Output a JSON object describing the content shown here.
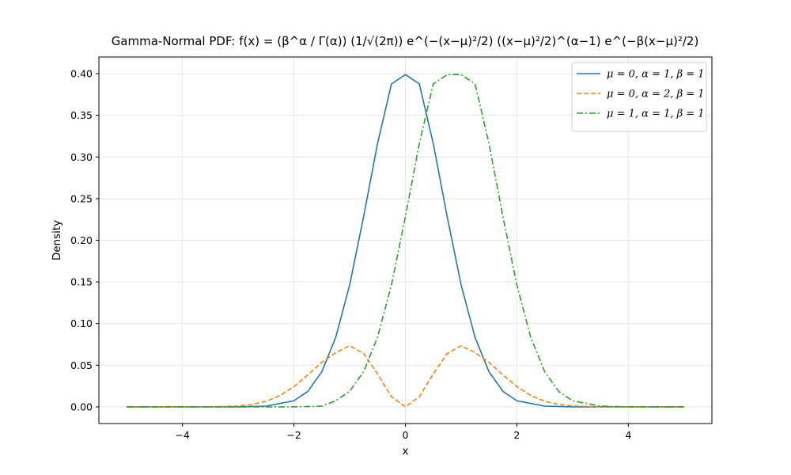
{
  "chart_data": {
    "type": "line",
    "title": "Gamma-Normal PDF: f(x) = (β^α / Γ(α)) (1/√(2π)) e^(−(x−μ)²/2) ((x−μ)²/2)^(α−1) e^(−β(x−μ)²/2)",
    "xlabel": "x",
    "ylabel": "Density",
    "xlim": [
      -5.5,
      5.5
    ],
    "ylim": [
      -0.02,
      0.42
    ],
    "xticks": [
      -4,
      -2,
      0,
      2,
      4
    ],
    "xtick_labels": [
      "−4",
      "−2",
      "0",
      "2",
      "4"
    ],
    "yticks": [
      0.0,
      0.05,
      0.1,
      0.15,
      0.2,
      0.25,
      0.3,
      0.35,
      0.4
    ],
    "ytick_labels": [
      "0.00",
      "0.05",
      "0.10",
      "0.15",
      "0.20",
      "0.25",
      "0.30",
      "0.35",
      "0.40"
    ],
    "grid": true,
    "legend_position": "top-right",
    "series": [
      {
        "name": "μ = 0, α = 1, β = 1",
        "color": "#1f77b4",
        "style": "solid",
        "x": [
          -5.0,
          -4.5,
          -4.0,
          -3.5,
          -3.0,
          -2.5,
          -2.0,
          -1.75,
          -1.5,
          -1.25,
          -1.0,
          -0.75,
          -0.5,
          -0.25,
          0.0,
          0.25,
          0.5,
          0.75,
          1.0,
          1.25,
          1.5,
          1.75,
          2.0,
          2.5,
          3.0,
          3.5,
          4.0,
          4.5,
          5.0
        ],
        "y": [
          0.0,
          0.0,
          0.0,
          0.0,
          0.0,
          0.0009,
          0.0073,
          0.0187,
          0.0422,
          0.0834,
          0.1465,
          0.2283,
          0.3161,
          0.3877,
          0.3989,
          0.3877,
          0.3161,
          0.2283,
          0.1465,
          0.0834,
          0.0422,
          0.0187,
          0.0073,
          0.0009,
          0.0,
          0.0,
          0.0,
          0.0,
          0.0
        ]
      },
      {
        "name": "μ = 0, α = 2, β = 1",
        "color": "#ff7f0e",
        "style": "dashed",
        "x": [
          -5.0,
          -4.0,
          -3.5,
          -3.0,
          -2.75,
          -2.5,
          -2.25,
          -2.0,
          -1.75,
          -1.5,
          -1.25,
          -1.0,
          -0.75,
          -0.5,
          -0.25,
          0.0,
          0.25,
          0.5,
          0.75,
          1.0,
          1.25,
          1.5,
          1.75,
          2.0,
          2.25,
          2.5,
          2.75,
          3.0,
          3.5,
          4.0,
          5.0
        ],
        "y": [
          0.0,
          0.0,
          0.0001,
          0.0011,
          0.0029,
          0.0067,
          0.0136,
          0.0244,
          0.0384,
          0.0534,
          0.0652,
          0.0733,
          0.0642,
          0.0395,
          0.0121,
          0.0,
          0.0121,
          0.0395,
          0.0642,
          0.0733,
          0.0652,
          0.0534,
          0.0384,
          0.0244,
          0.0136,
          0.0067,
          0.0029,
          0.0011,
          0.0001,
          0.0,
          0.0
        ]
      },
      {
        "name": "μ = 1, α = 1, β = 1",
        "color": "#2ca02c",
        "style": "dashdot",
        "x": [
          -5.0,
          -4.0,
          -3.5,
          -3.0,
          -2.5,
          -2.0,
          -1.5,
          -1.25,
          -1.0,
          -0.75,
          -0.5,
          -0.25,
          0.0,
          0.25,
          0.5,
          0.75,
          1.0,
          1.25,
          1.5,
          1.75,
          2.0,
          2.25,
          2.5,
          2.75,
          3.0,
          3.5,
          4.0,
          4.5,
          5.0
        ],
        "y": [
          0.0,
          0.0,
          0.0,
          0.0,
          0.0,
          0.0,
          0.0009,
          0.0073,
          0.0187,
          0.0422,
          0.0834,
          0.1465,
          0.2283,
          0.3161,
          0.3877,
          0.3989,
          0.3989,
          0.3877,
          0.3161,
          0.2283,
          0.1465,
          0.0834,
          0.0422,
          0.0187,
          0.0073,
          0.0009,
          0.0,
          0.0,
          0.0
        ]
      }
    ]
  }
}
